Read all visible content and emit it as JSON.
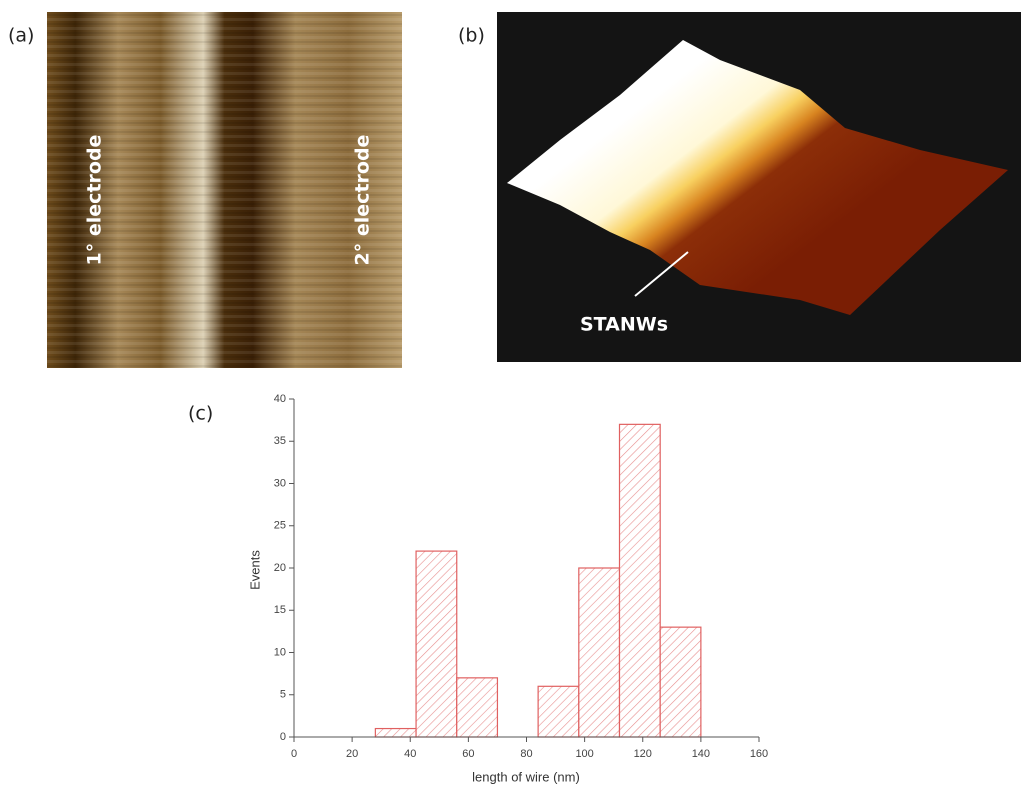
{
  "panels": [
    {
      "label": "(a)",
      "annotations": [
        "1° electrode",
        "2° electrode"
      ]
    },
    {
      "label": "(b)",
      "annotations": [
        "STANWs"
      ]
    }
  ],
  "chart_data": {
    "type": "histogram",
    "panel_label": "(c)",
    "x_label": "length of wire (nm)",
    "y_label": "Events",
    "bins": [
      28,
      42,
      56,
      70,
      84,
      98,
      112,
      126,
      140
    ],
    "values": [
      1,
      22,
      7,
      0,
      6,
      20,
      37,
      13
    ],
    "color": "#e06060",
    "xlim": [
      0,
      160
    ],
    "xticks": [
      0,
      20,
      40,
      60,
      80,
      100,
      120,
      140,
      160
    ],
    "ylim": [
      0,
      40
    ],
    "yticks": [
      0,
      5,
      10,
      15,
      20,
      25,
      30,
      35,
      40
    ]
  }
}
